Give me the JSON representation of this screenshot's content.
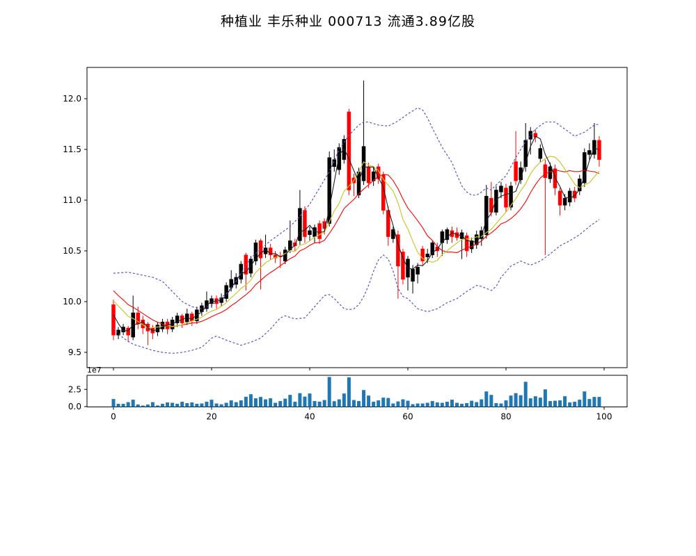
{
  "title": "种植业  丰乐种业  000713  流通3.89亿股",
  "price_axis": {
    "tick_labels": [
      "12.0",
      "11.5",
      "11.0",
      "10.5",
      "10.0",
      "9.5"
    ]
  },
  "volume_axis": {
    "tick_labels": [
      "2.5",
      "0.0"
    ],
    "offset_label": "1e7",
    "x_tick_labels": [
      "0",
      "20",
      "40",
      "60",
      "80",
      "100"
    ]
  },
  "chart_data": {
    "type": "candlestick+volume",
    "title": "种植业  丰乐种业  000713  流通3.89亿股",
    "xlabel": "",
    "ylabel": "",
    "price_ticks": [
      9.5,
      10.0,
      10.5,
      11.0,
      11.5,
      12.0
    ],
    "x_ticks": [
      0,
      20,
      40,
      60,
      80,
      100
    ],
    "volume_ticks": [
      0.0,
      2.5
    ],
    "volume_unit": "1e7",
    "price_ylim": [
      9.34,
      12.31
    ],
    "xlim": [
      -5.4,
      104.5
    ],
    "volume_ylim": [
      0,
      4.6
    ],
    "legend": "none",
    "grid": false,
    "colors": {
      "candle_up": "#000000",
      "candle_down": "#ff0000",
      "ma_fast": "#1f1f1f",
      "ma_mid": "#c9c92e",
      "ma_slow": "#ff0000",
      "band": "#5555cc",
      "volume_bar": "#1f77b4",
      "spine": "#000000",
      "background": "#ffffff"
    },
    "ma_windows": {
      "fast": 3,
      "mid": 8,
      "slow": 13
    },
    "ma_prehistory": [
      10.35,
      10.3,
      10.28,
      10.22,
      10.18,
      10.15,
      10.12,
      10.1,
      10.06,
      10.02,
      9.99,
      9.96
    ],
    "ohlcv_columns": [
      "open",
      "high",
      "low",
      "close",
      "volume_1e7"
    ],
    "ohlcv": [
      [
        9.97,
        10.02,
        9.62,
        9.67,
        1.1
      ],
      [
        9.67,
        9.75,
        9.63,
        9.72,
        0.4
      ],
      [
        9.7,
        9.78,
        9.67,
        9.75,
        0.4
      ],
      [
        9.74,
        9.76,
        9.6,
        9.67,
        0.64
      ],
      [
        9.65,
        10.06,
        9.62,
        9.89,
        1.0
      ],
      [
        9.89,
        9.95,
        9.73,
        9.78,
        0.3
      ],
      [
        9.82,
        9.86,
        9.68,
        9.74,
        0.15
      ],
      [
        9.78,
        9.8,
        9.57,
        9.71,
        0.3
      ],
      [
        9.74,
        9.77,
        9.63,
        9.69,
        0.64
      ],
      [
        9.7,
        9.8,
        9.66,
        9.77,
        0.16
      ],
      [
        9.73,
        9.83,
        9.7,
        9.8,
        0.4
      ],
      [
        9.8,
        9.83,
        9.68,
        9.73,
        0.6
      ],
      [
        9.73,
        9.85,
        9.7,
        9.82,
        0.55
      ],
      [
        9.79,
        9.89,
        9.75,
        9.86,
        0.4
      ],
      [
        9.86,
        9.88,
        9.74,
        9.79,
        0.7
      ],
      [
        9.8,
        9.93,
        9.77,
        9.88,
        0.5
      ],
      [
        9.88,
        9.9,
        9.76,
        9.81,
        0.6
      ],
      [
        9.81,
        9.95,
        9.78,
        9.92,
        0.4
      ],
      [
        9.9,
        9.99,
        9.86,
        9.96,
        0.45
      ],
      [
        9.93,
        10.1,
        9.9,
        10.01,
        0.7
      ],
      [
        9.98,
        10.06,
        9.94,
        10.03,
        1.0
      ],
      [
        10.03,
        10.06,
        9.93,
        9.98,
        0.45
      ],
      [
        9.99,
        10.08,
        9.95,
        10.04,
        0.33
      ],
      [
        10.03,
        10.19,
        10.0,
        10.16,
        0.55
      ],
      [
        10.14,
        10.31,
        10.1,
        10.22,
        0.9
      ],
      [
        10.17,
        10.28,
        10.13,
        10.24,
        0.64
      ],
      [
        10.22,
        10.4,
        10.18,
        10.37,
        0.9
      ],
      [
        10.46,
        10.48,
        10.11,
        10.27,
        1.43
      ],
      [
        10.28,
        10.45,
        10.24,
        10.42,
        1.8
      ],
      [
        10.4,
        10.61,
        10.36,
        10.58,
        1.2
      ],
      [
        10.6,
        10.62,
        10.12,
        10.43,
        1.4
      ],
      [
        10.47,
        10.66,
        10.43,
        10.53,
        1.05
      ],
      [
        10.53,
        10.57,
        10.41,
        10.46,
        1.2
      ],
      [
        10.46,
        10.5,
        10.38,
        10.43,
        0.55
      ],
      [
        10.45,
        10.49,
        10.33,
        10.44,
        0.8
      ],
      [
        10.4,
        10.54,
        10.37,
        10.51,
        1.15
      ],
      [
        10.51,
        10.8,
        10.48,
        10.6,
        1.7
      ],
      [
        10.58,
        10.62,
        10.5,
        10.55,
        0.7
      ],
      [
        10.6,
        11.1,
        10.56,
        10.92,
        1.95
      ],
      [
        10.9,
        10.94,
        10.58,
        10.64,
        1.45
      ],
      [
        10.66,
        10.74,
        10.6,
        10.7,
        1.9
      ],
      [
        10.64,
        10.76,
        10.58,
        10.73,
        0.8
      ],
      [
        10.77,
        10.8,
        10.57,
        10.62,
        0.72
      ],
      [
        10.79,
        10.82,
        10.66,
        10.72,
        0.95
      ],
      [
        10.77,
        11.48,
        10.74,
        11.42,
        4.3
      ],
      [
        11.33,
        11.5,
        11.28,
        11.4,
        0.78
      ],
      [
        11.3,
        11.56,
        11.25,
        11.52,
        1.05
      ],
      [
        11.4,
        11.64,
        11.36,
        11.6,
        1.9
      ],
      [
        11.87,
        11.9,
        11.05,
        11.1,
        4.25
      ],
      [
        11.22,
        11.26,
        11.04,
        11.17,
        0.95
      ],
      [
        11.05,
        11.32,
        11.02,
        11.28,
        0.8
      ],
      [
        11.19,
        12.18,
        11.15,
        11.53,
        2.4
      ],
      [
        11.33,
        11.37,
        11.12,
        11.17,
        1.6
      ],
      [
        11.19,
        11.33,
        11.14,
        11.28,
        0.7
      ],
      [
        11.33,
        11.36,
        11.16,
        11.21,
        0.9
      ],
      [
        11.25,
        11.28,
        10.86,
        10.9,
        1.3
      ],
      [
        10.9,
        10.94,
        10.55,
        10.64,
        1.25
      ],
      [
        10.62,
        10.74,
        10.58,
        10.71,
        0.45
      ],
      [
        10.66,
        10.7,
        10.03,
        10.35,
        0.75
      ],
      [
        10.49,
        10.52,
        10.17,
        10.22,
        1.05
      ],
      [
        10.24,
        10.45,
        10.11,
        10.42,
        0.85
      ],
      [
        10.2,
        10.36,
        10.08,
        10.32,
        0.35
      ],
      [
        10.27,
        10.38,
        10.18,
        10.34,
        0.45
      ],
      [
        10.52,
        10.55,
        10.36,
        10.4,
        0.45
      ],
      [
        10.44,
        10.52,
        10.38,
        10.47,
        0.55
      ],
      [
        10.46,
        10.6,
        10.43,
        10.58,
        0.8
      ],
      [
        10.54,
        10.58,
        10.44,
        10.5,
        0.6
      ],
      [
        10.58,
        10.71,
        10.45,
        10.69,
        0.55
      ],
      [
        10.61,
        10.73,
        10.57,
        10.71,
        0.7
      ],
      [
        10.7,
        10.74,
        10.58,
        10.64,
        1.0
      ],
      [
        10.68,
        10.73,
        10.6,
        10.63,
        0.55
      ],
      [
        10.62,
        10.71,
        10.42,
        10.68,
        0.4
      ],
      [
        10.65,
        10.68,
        10.44,
        10.5,
        0.5
      ],
      [
        10.52,
        10.63,
        10.48,
        10.6,
        0.85
      ],
      [
        10.56,
        10.7,
        10.52,
        10.66,
        0.65
      ],
      [
        10.62,
        10.74,
        10.55,
        10.7,
        1.05
      ],
      [
        10.66,
        11.15,
        10.62,
        11.04,
        2.2
      ],
      [
        11.02,
        11.18,
        10.84,
        10.88,
        1.7
      ],
      [
        10.88,
        11.14,
        10.85,
        11.1,
        0.5
      ],
      [
        11.08,
        11.18,
        11.02,
        11.14,
        0.45
      ],
      [
        11.12,
        11.16,
        10.88,
        10.93,
        0.9
      ],
      [
        10.93,
        11.18,
        10.9,
        11.14,
        1.6
      ],
      [
        11.38,
        11.68,
        11.15,
        11.19,
        1.95
      ],
      [
        11.2,
        11.38,
        11.16,
        11.32,
        1.65
      ],
      [
        11.33,
        11.76,
        11.28,
        11.59,
        3.6
      ],
      [
        11.6,
        11.72,
        11.45,
        11.68,
        1.2
      ],
      [
        11.66,
        11.7,
        11.57,
        11.62,
        1.5
      ],
      [
        11.41,
        11.55,
        11.37,
        11.51,
        1.3
      ],
      [
        11.35,
        11.4,
        10.46,
        11.22,
        2.5
      ],
      [
        11.21,
        11.37,
        11.17,
        11.33,
        0.8
      ],
      [
        11.31,
        11.35,
        11.05,
        11.12,
        0.85
      ],
      [
        11.09,
        11.12,
        10.85,
        10.95,
        0.9
      ],
      [
        10.95,
        11.06,
        10.9,
        11.02,
        1.5
      ],
      [
        10.98,
        11.12,
        10.94,
        11.09,
        0.6
      ],
      [
        11.09,
        11.13,
        10.98,
        11.02,
        0.7
      ],
      [
        11.09,
        11.25,
        11.05,
        11.21,
        1.0
      ],
      [
        11.17,
        11.51,
        11.13,
        11.47,
        2.2
      ],
      [
        11.45,
        11.56,
        11.4,
        11.49,
        1.1
      ],
      [
        11.45,
        11.76,
        11.41,
        11.59,
        1.4
      ],
      [
        11.59,
        11.63,
        11.33,
        11.4,
        1.4
      ]
    ],
    "bollinger_upper": [
      [
        0,
        10.28
      ],
      [
        3,
        10.29
      ],
      [
        6,
        10.26
      ],
      [
        8,
        10.24
      ],
      [
        10,
        10.2
      ],
      [
        12,
        10.1
      ],
      [
        14,
        10.0
      ],
      [
        16,
        9.95
      ],
      [
        18,
        9.93
      ],
      [
        20,
        9.96
      ],
      [
        22,
        10.04
      ],
      [
        24,
        10.12
      ],
      [
        26,
        10.28
      ],
      [
        28,
        10.43
      ],
      [
        30,
        10.52
      ],
      [
        32,
        10.6
      ],
      [
        34,
        10.67
      ],
      [
        36,
        10.74
      ],
      [
        38,
        10.84
      ],
      [
        40,
        10.96
      ],
      [
        42,
        11.12
      ],
      [
        44,
        11.28
      ],
      [
        46,
        11.5
      ],
      [
        48,
        11.64
      ],
      [
        50,
        11.74
      ],
      [
        51,
        11.77
      ],
      [
        52,
        11.77
      ],
      [
        54,
        11.74
      ],
      [
        56,
        11.73
      ],
      [
        58,
        11.78
      ],
      [
        60,
        11.85
      ],
      [
        62,
        11.91
      ],
      [
        63,
        11.89
      ],
      [
        64,
        11.81
      ],
      [
        65,
        11.71
      ],
      [
        67,
        11.52
      ],
      [
        69,
        11.37
      ],
      [
        70,
        11.25
      ],
      [
        71,
        11.14
      ],
      [
        72,
        11.08
      ],
      [
        73,
        11.05
      ],
      [
        74,
        11.05
      ],
      [
        75,
        11.08
      ],
      [
        76,
        11.12
      ],
      [
        77,
        11.1
      ],
      [
        78,
        11.15
      ],
      [
        80,
        11.24
      ],
      [
        82,
        11.42
      ],
      [
        84,
        11.58
      ],
      [
        86,
        11.7
      ],
      [
        88,
        11.77
      ],
      [
        90,
        11.77
      ],
      [
        92,
        11.7
      ],
      [
        94,
        11.63
      ],
      [
        96,
        11.67
      ],
      [
        98,
        11.74
      ],
      [
        99,
        11.75
      ]
    ],
    "bollinger_lower": [
      [
        0,
        9.74
      ],
      [
        2,
        9.64
      ],
      [
        4,
        9.58
      ],
      [
        6,
        9.55
      ],
      [
        8,
        9.52
      ],
      [
        10,
        9.5
      ],
      [
        12,
        9.49
      ],
      [
        14,
        9.5
      ],
      [
        16,
        9.52
      ],
      [
        18,
        9.55
      ],
      [
        20,
        9.64
      ],
      [
        21,
        9.66
      ],
      [
        23,
        9.62
      ],
      [
        26,
        9.57
      ],
      [
        28,
        9.6
      ],
      [
        30,
        9.64
      ],
      [
        32,
        9.73
      ],
      [
        34,
        9.84
      ],
      [
        35,
        9.86
      ],
      [
        37,
        9.83
      ],
      [
        39,
        9.84
      ],
      [
        41,
        9.95
      ],
      [
        43,
        10.06
      ],
      [
        44,
        10.07
      ],
      [
        45,
        10.03
      ],
      [
        47,
        9.93
      ],
      [
        48,
        9.92
      ],
      [
        49,
        9.93
      ],
      [
        50,
        9.97
      ],
      [
        51,
        10.05
      ],
      [
        52,
        10.16
      ],
      [
        53,
        10.3
      ],
      [
        54,
        10.41
      ],
      [
        55,
        10.46
      ],
      [
        56,
        10.42
      ],
      [
        57,
        10.3
      ],
      [
        58,
        10.13
      ],
      [
        59,
        10.05
      ],
      [
        60,
        10.03
      ],
      [
        62,
        9.93
      ],
      [
        64,
        9.9
      ],
      [
        66,
        9.93
      ],
      [
        68,
        9.99
      ],
      [
        70,
        10.03
      ],
      [
        72,
        10.1
      ],
      [
        74,
        10.16
      ],
      [
        75,
        10.15
      ],
      [
        77,
        10.11
      ],
      [
        78,
        10.15
      ],
      [
        79,
        10.24
      ],
      [
        81,
        10.35
      ],
      [
        83,
        10.4
      ],
      [
        85,
        10.36
      ],
      [
        87,
        10.4
      ],
      [
        89,
        10.47
      ],
      [
        91,
        10.55
      ],
      [
        93,
        10.6
      ],
      [
        95,
        10.66
      ],
      [
        97,
        10.74
      ],
      [
        99,
        10.81
      ]
    ]
  }
}
